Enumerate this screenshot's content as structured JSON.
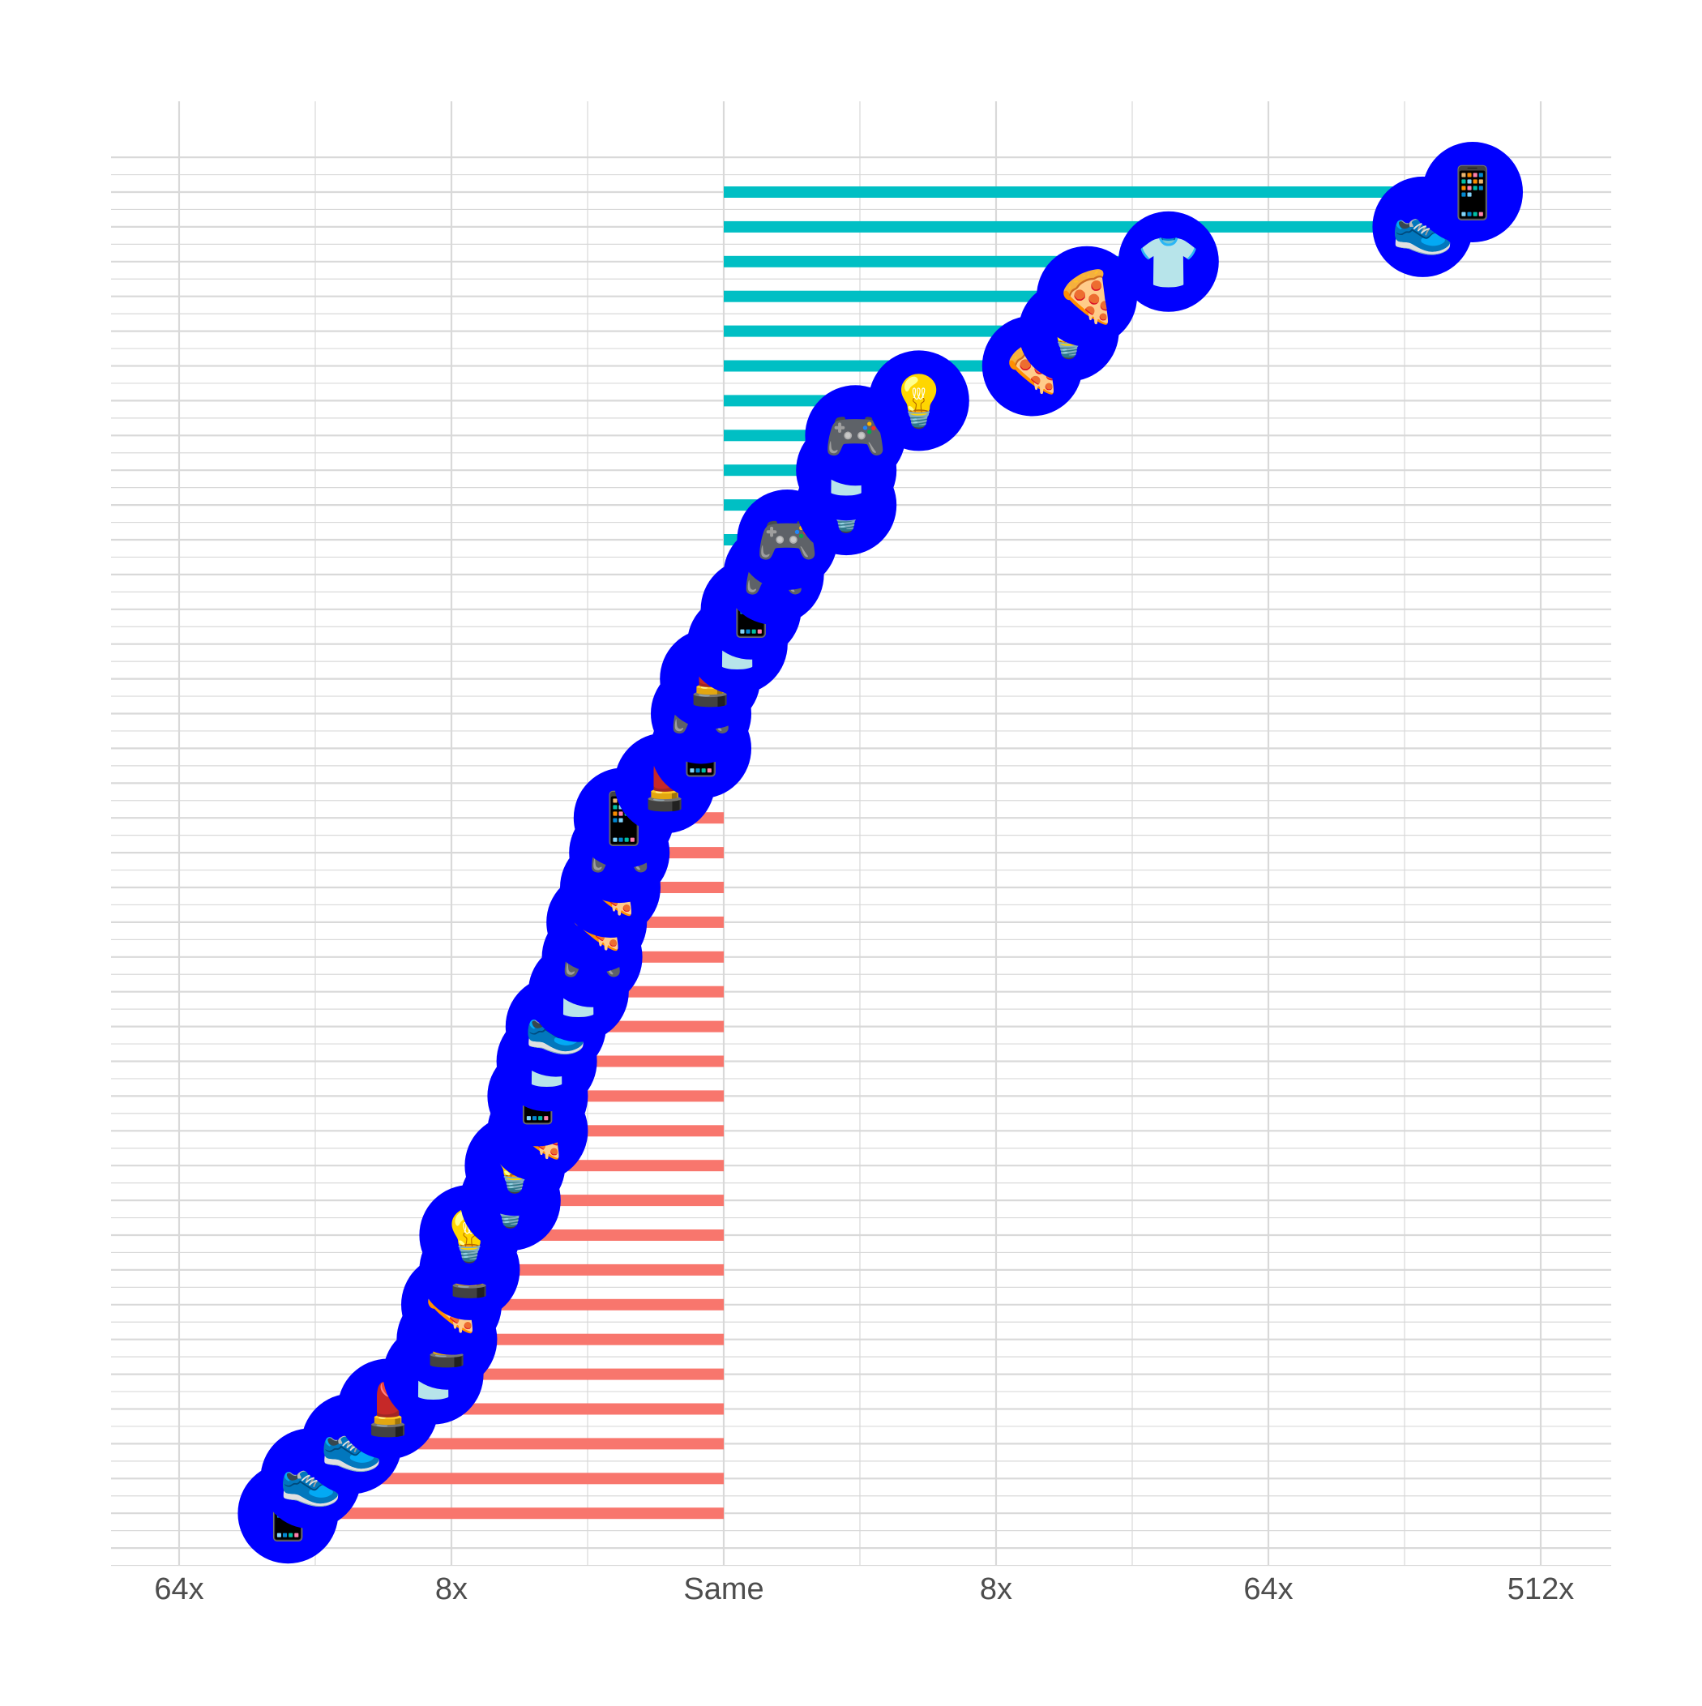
{
  "chart_data": {
    "type": "bar",
    "orientation": "horizontal",
    "scale": "log2",
    "center_label": "Same",
    "xlim": [
      -6.5,
      9.5
    ],
    "x_ticks": [
      {
        "value": -6,
        "label": "64x"
      },
      {
        "value": -3,
        "label": "8x"
      },
      {
        "value": 0,
        "label": "Same"
      },
      {
        "value": 3,
        "label": "8x"
      },
      {
        "value": 6,
        "label": "64x"
      },
      {
        "value": 9,
        "label": "512x"
      }
    ],
    "colors": {
      "positive_bar": "#00BFC4",
      "negative_bar": "#F8766D",
      "marker": "#0000FF",
      "grid": "#d9d9d9",
      "tick_text": "#4d4d4d"
    },
    "categories": [
      "phone",
      "shoe",
      "tshirt",
      "pizza",
      "bulb",
      "pizza",
      "bulb",
      "gamepad",
      "tshirt",
      "bulb",
      "gamepad",
      "gamepad",
      "phone",
      "tshirt",
      "lipstick",
      "gamepad",
      "phone",
      "lipstick",
      "phone",
      "gamepad",
      "pizza",
      "pizza",
      "gamepad",
      "tshirt",
      "shoe",
      "tshirt",
      "phone",
      "pizza",
      "bulb",
      "bulb",
      "bulb",
      "lipstick",
      "pizza",
      "lipstick",
      "tshirt",
      "lipstick",
      "shoe",
      "shoe",
      "phone"
    ],
    "values": [
      8.25,
      7.7,
      4.9,
      4.0,
      3.8,
      3.4,
      2.15,
      1.45,
      1.35,
      1.35,
      0.7,
      0.55,
      0.3,
      0.15,
      -0.15,
      -0.25,
      -0.25,
      -0.65,
      -1.1,
      -1.15,
      -1.25,
      -1.4,
      -1.45,
      -1.6,
      -1.85,
      -1.95,
      -2.05,
      -2.05,
      -2.3,
      -2.35,
      -2.8,
      -2.8,
      -3.0,
      -3.05,
      -3.2,
      -3.7,
      -4.1,
      -4.55,
      -4.8
    ],
    "icons": {
      "phone": "📱",
      "shoe": "👟",
      "tshirt": "👕",
      "pizza": "🍕",
      "bulb": "💡",
      "gamepad": "🎮",
      "lipstick": "💄"
    },
    "grid": true,
    "legend": "none"
  }
}
